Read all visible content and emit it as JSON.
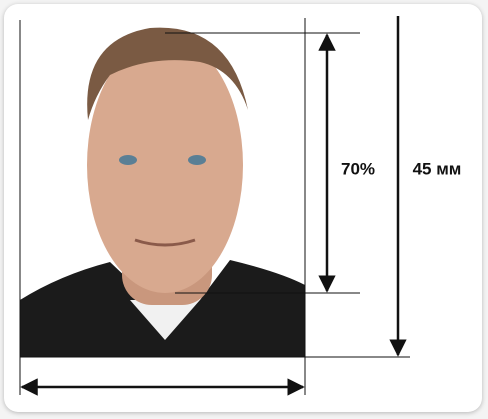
{
  "labels": {
    "face_ratio": "70%",
    "height": "45 мм"
  }
}
